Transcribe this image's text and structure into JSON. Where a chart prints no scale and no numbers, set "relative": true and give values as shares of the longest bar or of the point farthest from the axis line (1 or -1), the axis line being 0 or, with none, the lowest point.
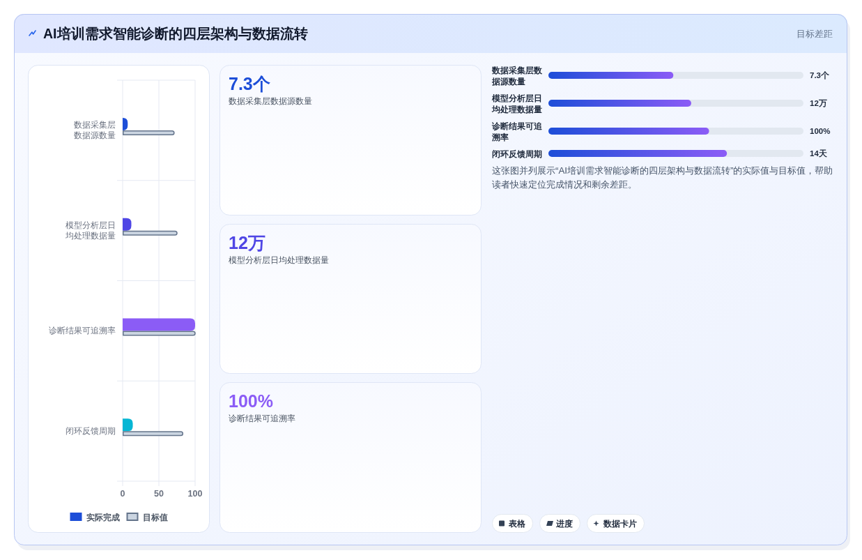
{
  "chart_data": [
    {
      "type": "other",
      "title": "AI培训需求智能诊断的四层架构与数据流转",
      "annotations": [
        "目标差距"
      ]
    },
    {
      "type": "bar",
      "orientation": "horizontal",
      "categories": [
        "数据采集层数据源数量",
        "模型分析层日均处理数据量",
        "诊断结果可追溯率",
        "闭环反馈周期"
      ],
      "series": [
        {
          "name": "实际完成",
          "colors": [
            "#1d4ed8",
            "#4f46e5",
            "#8b5cf6",
            "#06b6d4"
          ],
          "values": [
            7,
            12,
            100,
            14
          ]
        },
        {
          "name": "目标值",
          "color": "#cbd5e1",
          "values": [
            71,
            75,
            100,
            83
          ]
        }
      ],
      "xlim": [
        0,
        100
      ],
      "xticks": [
        0,
        50,
        100
      ],
      "grid": true,
      "legend": "bottom"
    },
    {
      "type": "other",
      "title": "7.3个",
      "subtitle": "数据采集层数据源数量"
    },
    {
      "type": "other",
      "title": "12万",
      "subtitle": "模型分析层日均处理数据量"
    },
    {
      "type": "other",
      "title": "100%",
      "subtitle": "诊断结果可追溯率"
    },
    {
      "type": "bar",
      "orientation": "horizontal",
      "relative": true,
      "categories": [
        "数据采集层数据源数量",
        "模型分析层日均处理数据量",
        "诊断结果可追溯率",
        "闭环反馈周期"
      ],
      "y2_categories": [
        "7.3个",
        "12万",
        "100%",
        "14天"
      ],
      "color": "#8b5cf6",
      "values": [
        0.7,
        0.8,
        0.9,
        1
      ],
      "annotations": [
        "这张图并列展示“AI培训需求智能诊断的四层架构与数据流转”的实际值与目标值，帮助读者快速定位完成情况和剩余差距。"
      ]
    },
    {
      "type": "other",
      "annotations": [
        "表格",
        "进度",
        "数据卡片"
      ]
    }
  ]
}
